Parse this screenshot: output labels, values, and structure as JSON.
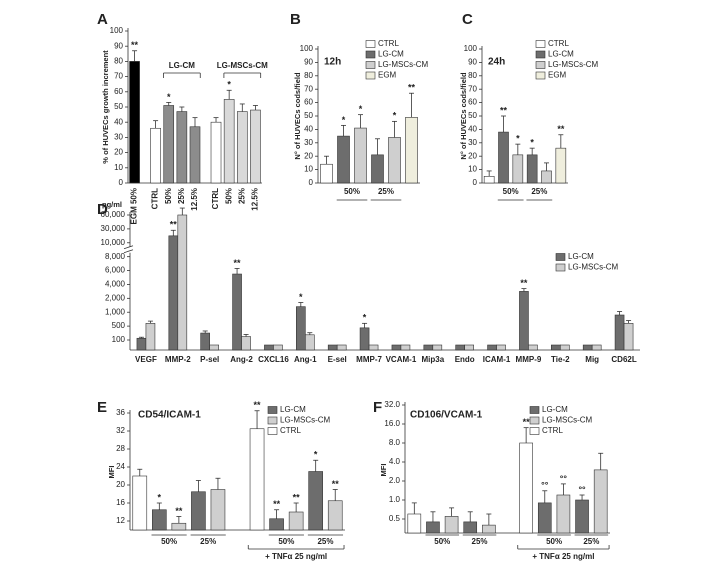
{
  "chart_data": [
    {
      "type": "bar",
      "panel": "A",
      "ylabel": "% of HUVECs growth increment",
      "categories": [
        "EGM 50%",
        "CTRL",
        "50%",
        "25%",
        "12.5%",
        "CTRL",
        "50%",
        "25%",
        "12.5%"
      ],
      "values": [
        80,
        36,
        51,
        47,
        37,
        40,
        55,
        47,
        48
      ],
      "errors": [
        7,
        5,
        2,
        3,
        6,
        3,
        6,
        5,
        3
      ],
      "sig": [
        "**",
        null,
        "*",
        null,
        null,
        null,
        "*",
        null,
        null
      ],
      "colors": [
        "#000000",
        "#ffffff",
        "#8c8c8c",
        "#8c8c8c",
        "#8c8c8c",
        "#ffffff",
        "#d9d9d9",
        "#d9d9d9",
        "#d9d9d9"
      ],
      "group_labels": [
        "LG-CM",
        "LG-MSCs-CM"
      ],
      "ylim": [
        0,
        100
      ],
      "yticks": [
        0,
        10,
        20,
        30,
        40,
        50,
        60,
        70,
        80,
        90,
        100
      ]
    },
    {
      "type": "bar",
      "panel": "B",
      "title": "12h",
      "ylabel": "N° of HUVECs cods/field",
      "series": [
        {
          "name": "CTRL",
          "color": "#ffffff",
          "values": [
            14,
            null,
            null,
            null,
            null,
            null
          ],
          "errors": [
            6,
            null,
            null,
            null,
            null,
            null
          ],
          "sig": [
            null,
            null,
            null,
            null,
            null,
            null
          ]
        },
        {
          "name": "LG-CM",
          "color": "#6d6d6d",
          "values": [
            null,
            35,
            null,
            21,
            null,
            null
          ],
          "errors": [
            null,
            8,
            null,
            12,
            null,
            null
          ],
          "sig": [
            null,
            "*",
            null,
            null,
            null,
            null
          ]
        },
        {
          "name": "LG-MSCs-CM",
          "color": "#cfcfcf",
          "values": [
            null,
            null,
            41,
            null,
            34,
            null
          ],
          "errors": [
            null,
            null,
            10,
            null,
            12,
            null
          ],
          "sig": [
            null,
            null,
            "*",
            null,
            "*",
            null
          ]
        },
        {
          "name": "EGM",
          "color": "#efeedd",
          "values": [
            null,
            null,
            null,
            null,
            null,
            49
          ],
          "errors": [
            null,
            null,
            null,
            null,
            null,
            18
          ],
          "sig": [
            null,
            null,
            null,
            null,
            null,
            "**"
          ]
        }
      ],
      "group_labels": [
        "50%",
        "25%"
      ],
      "ylim": [
        0,
        100
      ],
      "yticks": [
        0,
        10,
        20,
        30,
        40,
        50,
        60,
        70,
        80,
        90,
        100
      ]
    },
    {
      "type": "bar",
      "panel": "C",
      "title": "24h",
      "ylabel": "N° of HUVECs cods/field",
      "series": [
        {
          "name": "CTRL",
          "color": "#ffffff",
          "values": [
            5,
            null,
            null,
            null,
            null,
            null
          ],
          "errors": [
            4,
            null,
            null,
            null,
            null,
            null
          ],
          "sig": [
            null,
            null,
            null,
            null,
            null,
            null
          ]
        },
        {
          "name": "LG-CM",
          "color": "#6d6d6d",
          "values": [
            null,
            38,
            null,
            21,
            null,
            null
          ],
          "errors": [
            null,
            12,
            null,
            5,
            null,
            null
          ],
          "sig": [
            null,
            "**",
            null,
            "*",
            null,
            null
          ]
        },
        {
          "name": "LG-MSCs-CM",
          "color": "#cfcfcf",
          "values": [
            null,
            null,
            21,
            null,
            9,
            null
          ],
          "errors": [
            null,
            null,
            8,
            null,
            6,
            null
          ],
          "sig": [
            null,
            null,
            "*",
            null,
            null,
            null
          ]
        },
        {
          "name": "EGM",
          "color": "#efeedd",
          "values": [
            null,
            null,
            null,
            null,
            null,
            26
          ],
          "errors": [
            null,
            null,
            null,
            null,
            null,
            10
          ],
          "sig": [
            null,
            null,
            null,
            null,
            null,
            "**"
          ]
        }
      ],
      "group_labels": [
        "50%",
        "25%"
      ],
      "ylim": [
        0,
        100
      ],
      "yticks": [
        0,
        10,
        20,
        30,
        40,
        50,
        60,
        70,
        80,
        90,
        100
      ]
    },
    {
      "type": "bar",
      "panel": "D",
      "ylabel": "pg/ml",
      "y_break": true,
      "categories": [
        "VEGF",
        "MMP-2",
        "P-sel",
        "Ang-2",
        "CXCL16",
        "Ang-1",
        "E-sel",
        "MMP-7",
        "VCAM-1",
        "Mip3a",
        "Endo",
        "ICAM-1",
        "MMP-9",
        "Tie-2",
        "Mig",
        "CD62L"
      ],
      "series": [
        {
          "name": "LG-CM",
          "color": "#6d6d6d",
          "values": [
            150,
            20000,
            300,
            5500,
            50,
            1400,
            50,
            450,
            50,
            50,
            50,
            50,
            3000,
            50,
            50,
            900
          ],
          "errors": [
            30,
            8000,
            60,
            800,
            null,
            300,
            null,
            150,
            null,
            null,
            null,
            null,
            400,
            null,
            null,
            150
          ],
          "sig": [
            null,
            "**",
            null,
            "**",
            null,
            "*",
            null,
            "*",
            null,
            null,
            null,
            null,
            "**",
            null,
            null,
            null
          ]
        },
        {
          "name": "LG-MSCs-CM",
          "color": "#cfcfcf",
          "values": [
            600,
            60000,
            50,
            200,
            50,
            250,
            50,
            50,
            50,
            50,
            50,
            50,
            50,
            50,
            50,
            600
          ],
          "errors": [
            80,
            15000,
            null,
            60,
            null,
            60,
            null,
            null,
            null,
            null,
            null,
            null,
            null,
            null,
            null,
            100
          ]
        }
      ],
      "ylim": [
        0,
        60000
      ],
      "yticks": [
        100,
        500,
        {
          "value": 1000,
          "label": "1,000"
        },
        {
          "value": 2000,
          "label": "2,000"
        },
        {
          "value": 4000,
          "label": "4,000"
        },
        {
          "value": 6000,
          "label": "6,000"
        },
        {
          "value": 8000,
          "label": "8,000"
        },
        {
          "value": 10000,
          "label": "10,000"
        },
        {
          "value": 30000,
          "label": "30,000"
        },
        {
          "value": 60000,
          "label": "60,000"
        }
      ]
    },
    {
      "type": "bar",
      "panel": "E",
      "title": "CD54/ICAM-1",
      "ylabel": "MFI",
      "series": [
        {
          "name": "LG-CM",
          "color": "#6d6d6d",
          "values": [
            null,
            14.5,
            null,
            18.5,
            null,
            null,
            12.5,
            null,
            23,
            null
          ],
          "errors": [
            null,
            1.5,
            null,
            2.5,
            null,
            null,
            2,
            null,
            2.5,
            null
          ],
          "sig": [
            null,
            "*",
            null,
            null,
            null,
            null,
            "**",
            null,
            "*",
            null
          ]
        },
        {
          "name": "LG-MSCs-CM",
          "color": "#cfcfcf",
          "values": [
            null,
            null,
            11.5,
            null,
            19,
            null,
            null,
            14,
            null,
            16.5
          ],
          "errors": [
            null,
            null,
            1.5,
            null,
            2.5,
            null,
            null,
            2,
            null,
            2.5
          ],
          "sig": [
            null,
            null,
            "**",
            null,
            null,
            null,
            null,
            "**",
            null,
            "**"
          ]
        },
        {
          "name": "CTRL",
          "color": "#ffffff",
          "values": [
            22,
            null,
            null,
            null,
            null,
            32.5,
            null,
            null,
            null,
            null
          ],
          "errors": [
            1.5,
            null,
            null,
            null,
            null,
            4,
            null,
            null,
            null,
            null
          ],
          "sig": [
            null,
            null,
            null,
            null,
            null,
            "**",
            null,
            null,
            null,
            null
          ]
        }
      ],
      "group_labels": [
        "50%",
        "25%",
        "50%",
        "25%"
      ],
      "bracket_label": "+ TNFα 25 ng/ml",
      "ylim": [
        10,
        36
      ],
      "yticks": [
        12,
        16,
        20,
        24,
        28,
        32,
        36
      ]
    },
    {
      "type": "bar",
      "panel": "F",
      "title": "CD106/VCAM-1",
      "ylabel": "MFI",
      "log": true,
      "log_base": 2,
      "series": [
        {
          "name": "LG-CM",
          "color": "#6d6d6d",
          "values": [
            null,
            0.45,
            null,
            0.45,
            null,
            null,
            0.9,
            null,
            1.0,
            null
          ],
          "errors": [
            null,
            0.2,
            null,
            0.2,
            null,
            null,
            0.5,
            null,
            0.2,
            null
          ],
          "sig": [
            null,
            null,
            null,
            null,
            null,
            null,
            "°°",
            null,
            "°°",
            null
          ]
        },
        {
          "name": "LG-MSCs-CM",
          "color": "#cfcfcf",
          "values": [
            null,
            null,
            0.55,
            null,
            0.4,
            null,
            null,
            1.2,
            null,
            3.0
          ],
          "errors": [
            null,
            null,
            0.2,
            null,
            0.2,
            null,
            null,
            0.6,
            null,
            2.5
          ],
          "sig": [
            null,
            null,
            null,
            null,
            null,
            null,
            null,
            "°°",
            null,
            null
          ]
        },
        {
          "name": "CTRL",
          "color": "#ffffff",
          "values": [
            0.6,
            null,
            null,
            null,
            null,
            8,
            null,
            null,
            null,
            null
          ],
          "errors": [
            0.3,
            null,
            null,
            null,
            null,
            6,
            null,
            null,
            null,
            null
          ],
          "sig": [
            null,
            null,
            null,
            null,
            null,
            "**",
            null,
            null,
            null,
            null
          ]
        }
      ],
      "group_labels": [
        "50%",
        "25%",
        "50%",
        "25%"
      ],
      "bracket_label": "+ TNFα 25 ng/ml",
      "ylim": [
        0.3,
        32
      ],
      "yticks": [
        0.5,
        {
          "value": 1,
          "label": "1.0"
        },
        {
          "value": 2,
          "label": "2.0"
        },
        {
          "value": 4,
          "label": "4.0"
        },
        {
          "value": 8,
          "label": "8.0"
        },
        {
          "value": 16,
          "label": "16.0"
        },
        {
          "value": 32,
          "label": "32.0"
        }
      ]
    }
  ]
}
